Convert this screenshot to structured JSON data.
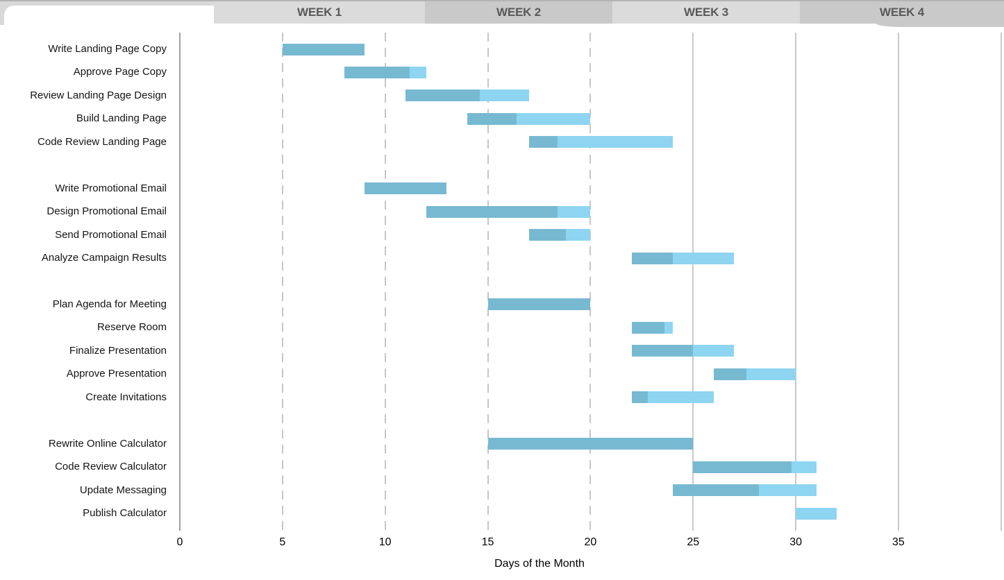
{
  "header": {
    "weeks": [
      {
        "label": "WEEK 1"
      },
      {
        "label": "WEEK 2"
      },
      {
        "label": "WEEK 3"
      },
      {
        "label": "WEEK 4"
      }
    ]
  },
  "chart_data": {
    "type": "gantt",
    "title": "",
    "xlabel": "Days of the Month",
    "x_ticks": [
      0,
      5,
      10,
      15,
      20,
      25,
      30,
      35
    ],
    "xlim": [
      0,
      40
    ],
    "grid": true,
    "gridlines": [
      {
        "day": 0,
        "style": "axis"
      },
      {
        "day": 5,
        "style": "dashed"
      },
      {
        "day": 10,
        "style": "dashed"
      },
      {
        "day": 15,
        "style": "dashed"
      },
      {
        "day": 20,
        "style": "dashed"
      },
      {
        "day": 25,
        "style": "solid"
      },
      {
        "day": 30,
        "style": "solid"
      },
      {
        "day": 35,
        "style": "solid"
      },
      {
        "day": 40,
        "style": "solid"
      }
    ],
    "bar_colors": {
      "complete": "#78b9d2",
      "remaining": "#8ed5f1"
    },
    "task_groups": [
      [
        {
          "name": "Write Landing Page Copy",
          "start": 5,
          "duration": 4,
          "percent_complete": 100
        },
        {
          "name": "Approve Page Copy",
          "start": 8,
          "duration": 4,
          "percent_complete": 80
        },
        {
          "name": "Review Landing Page Design",
          "start": 11,
          "duration": 6,
          "percent_complete": 60
        },
        {
          "name": "Build Landing Page",
          "start": 14,
          "duration": 6,
          "percent_complete": 40
        },
        {
          "name": "Code Review Landing Page",
          "start": 17,
          "duration": 7,
          "percent_complete": 20
        }
      ],
      [
        {
          "name": "Write Promotional Email",
          "start": 9,
          "duration": 4,
          "percent_complete": 100
        },
        {
          "name": "Design Promotional Email",
          "start": 12,
          "duration": 8,
          "percent_complete": 80
        },
        {
          "name": "Send Promotional Email",
          "start": 17,
          "duration": 3,
          "percent_complete": 60
        },
        {
          "name": "Analyze Campaign Results",
          "start": 22,
          "duration": 5,
          "percent_complete": 40
        }
      ],
      [
        {
          "name": "Plan Agenda for Meeting",
          "start": 15,
          "duration": 5,
          "percent_complete": 100
        },
        {
          "name": "Reserve Room",
          "start": 22,
          "duration": 2,
          "percent_complete": 80
        },
        {
          "name": "Finalize Presentation",
          "start": 22,
          "duration": 5,
          "percent_complete": 60
        },
        {
          "name": "Approve Presentation",
          "start": 26,
          "duration": 4,
          "percent_complete": 40
        },
        {
          "name": "Create Invitations",
          "start": 22,
          "duration": 4,
          "percent_complete": 20
        }
      ],
      [
        {
          "name": "Rewrite Online Calculator",
          "start": 15,
          "duration": 10,
          "percent_complete": 100
        },
        {
          "name": "Code Review Calculator",
          "start": 25,
          "duration": 6,
          "percent_complete": 80
        },
        {
          "name": "Update Messaging",
          "start": 24,
          "duration": 7,
          "percent_complete": 60
        },
        {
          "name": "Publish Calculator",
          "start": 30,
          "duration": 2,
          "percent_complete": 0
        }
      ]
    ]
  }
}
